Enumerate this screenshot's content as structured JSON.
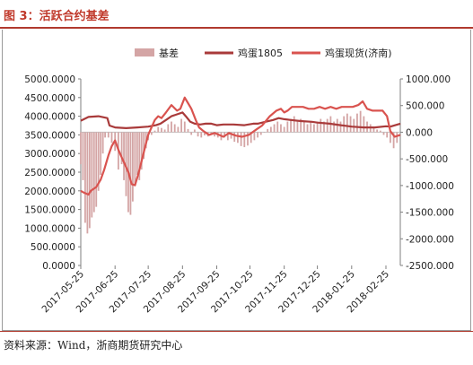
{
  "figure": {
    "title": "图 3：活跃合约基差",
    "source": "资料来源：Wind，浙商期货研究中心"
  },
  "colors": {
    "title": "#c0392b",
    "basis": "#d4a5a5",
    "futures": "#a93a3a",
    "spot": "#d9534f",
    "axis": "#7f7f7f"
  },
  "chart_data": {
    "type": "bar+line",
    "legend_position": "top",
    "grid": false,
    "x_ticks": [
      "2017-05-25",
      "2017-06-25",
      "2017-07-25",
      "2017-08-25",
      "2017-09-25",
      "2017-10-25",
      "2017-11-25",
      "2017-12-25",
      "2018-01-25",
      "2018-02-25"
    ],
    "x_start": "2017-05-25",
    "x_end": "2018-03-10",
    "left_axis": {
      "ylim": [
        0,
        5000
      ],
      "ticks": [
        "0.0000",
        "500.0000",
        "1000.0000",
        "1500.0000",
        "2000.0000",
        "2500.0000",
        "3000.0000",
        "3500.0000",
        "4000.0000",
        "4500.0000",
        "5000.0000"
      ]
    },
    "right_axis": {
      "ylim": [
        -2500,
        1000
      ],
      "ticks": [
        "-2500.000",
        "-2000.000",
        "-1500.000",
        "-1000.000",
        "-500.000",
        "0.000",
        "500.000",
        "1000.000"
      ]
    },
    "series": [
      {
        "name": "基差",
        "type": "bar",
        "axis": "right",
        "points": [
          [
            "2017-05-25",
            -600
          ],
          [
            "2017-05-27",
            -900
          ],
          [
            "2017-05-29",
            -1700
          ],
          [
            "2017-05-31",
            -1900
          ],
          [
            "2017-06-02",
            -1800
          ],
          [
            "2017-06-04",
            -1600
          ],
          [
            "2017-06-06",
            -1500
          ],
          [
            "2017-06-08",
            -1400
          ],
          [
            "2017-06-10",
            -1100
          ],
          [
            "2017-06-12",
            -800
          ],
          [
            "2017-06-14",
            -400
          ],
          [
            "2017-06-16",
            -100
          ],
          [
            "2017-06-19",
            -100
          ],
          [
            "2017-06-22",
            -200
          ],
          [
            "2017-06-25",
            -350
          ],
          [
            "2017-06-28",
            -700
          ],
          [
            "2017-07-01",
            -600
          ],
          [
            "2017-07-03",
            -900
          ],
          [
            "2017-07-05",
            -1200
          ],
          [
            "2017-07-07",
            -1500
          ],
          [
            "2017-07-09",
            -1550
          ],
          [
            "2017-07-11",
            -1300
          ],
          [
            "2017-07-13",
            -1000
          ],
          [
            "2017-07-15",
            -800
          ],
          [
            "2017-07-17",
            -900
          ],
          [
            "2017-07-19",
            -700
          ],
          [
            "2017-07-21",
            -500
          ],
          [
            "2017-07-23",
            -300
          ],
          [
            "2017-07-25",
            -150
          ],
          [
            "2017-07-28",
            -50
          ],
          [
            "2017-07-31",
            30
          ],
          [
            "2017-08-03",
            100
          ],
          [
            "2017-08-06",
            80
          ],
          [
            "2017-08-09",
            50
          ],
          [
            "2017-08-12",
            150
          ],
          [
            "2017-08-15",
            200
          ],
          [
            "2017-08-18",
            150
          ],
          [
            "2017-08-21",
            100
          ],
          [
            "2017-08-24",
            250
          ],
          [
            "2017-08-27",
            200
          ],
          [
            "2017-08-30",
            60
          ],
          [
            "2017-09-02",
            -50
          ],
          [
            "2017-09-05",
            50
          ],
          [
            "2017-09-08",
            -80
          ],
          [
            "2017-09-11",
            -100
          ],
          [
            "2017-09-14",
            -60
          ],
          [
            "2017-09-17",
            -80
          ],
          [
            "2017-09-20",
            -50
          ],
          [
            "2017-09-23",
            -80
          ],
          [
            "2017-09-26",
            -100
          ],
          [
            "2017-09-29",
            -150
          ],
          [
            "2017-10-02",
            -100
          ],
          [
            "2017-10-05",
            -150
          ],
          [
            "2017-10-08",
            -120
          ],
          [
            "2017-10-11",
            -180
          ],
          [
            "2017-10-14",
            -200
          ],
          [
            "2017-10-17",
            -260
          ],
          [
            "2017-10-20",
            -280
          ],
          [
            "2017-10-23",
            -250
          ],
          [
            "2017-10-26",
            -200
          ],
          [
            "2017-10-29",
            -150
          ],
          [
            "2017-11-01",
            -100
          ],
          [
            "2017-11-04",
            -50
          ],
          [
            "2017-11-07",
            0
          ],
          [
            "2017-11-10",
            60
          ],
          [
            "2017-11-13",
            100
          ],
          [
            "2017-11-16",
            150
          ],
          [
            "2017-11-19",
            200
          ],
          [
            "2017-11-22",
            150
          ],
          [
            "2017-11-25",
            100
          ],
          [
            "2017-11-28",
            200
          ],
          [
            "2017-12-01",
            250
          ],
          [
            "2017-12-04",
            300
          ],
          [
            "2017-12-07",
            200
          ],
          [
            "2017-12-10",
            250
          ],
          [
            "2017-12-13",
            200
          ],
          [
            "2017-12-16",
            150
          ],
          [
            "2017-12-19",
            200
          ],
          [
            "2017-12-22",
            150
          ],
          [
            "2017-12-25",
            200
          ],
          [
            "2017-12-28",
            250
          ],
          [
            "2017-12-31",
            200
          ],
          [
            "2018-01-03",
            250
          ],
          [
            "2018-01-06",
            300
          ],
          [
            "2018-01-09",
            200
          ],
          [
            "2018-01-12",
            250
          ],
          [
            "2018-01-15",
            200
          ],
          [
            "2018-01-18",
            300
          ],
          [
            "2018-01-21",
            350
          ],
          [
            "2018-01-24",
            300
          ],
          [
            "2018-01-27",
            250
          ],
          [
            "2018-01-30",
            350
          ],
          [
            "2018-02-02",
            400
          ],
          [
            "2018-02-05",
            300
          ],
          [
            "2018-02-08",
            200
          ],
          [
            "2018-02-11",
            150
          ],
          [
            "2018-02-14",
            100
          ],
          [
            "2018-02-17",
            50
          ],
          [
            "2018-02-20",
            30
          ],
          [
            "2018-02-23",
            -50
          ],
          [
            "2018-02-26",
            -100
          ],
          [
            "2018-03-01",
            -200
          ],
          [
            "2018-03-04",
            -300
          ],
          [
            "2018-03-07",
            -200
          ]
        ]
      },
      {
        "name": "鸡蛋1805",
        "type": "line",
        "axis": "left",
        "points": [
          [
            "2017-05-25",
            3880
          ],
          [
            "2017-06-01",
            3980
          ],
          [
            "2017-06-10",
            4000
          ],
          [
            "2017-06-18",
            3950
          ],
          [
            "2017-06-20",
            3750
          ],
          [
            "2017-06-25",
            3700
          ],
          [
            "2017-07-05",
            3680
          ],
          [
            "2017-07-15",
            3700
          ],
          [
            "2017-07-25",
            3720
          ],
          [
            "2017-08-01",
            3760
          ],
          [
            "2017-08-05",
            3800
          ],
          [
            "2017-08-10",
            3900
          ],
          [
            "2017-08-15",
            4000
          ],
          [
            "2017-08-20",
            4050
          ],
          [
            "2017-08-25",
            4100
          ],
          [
            "2017-08-28",
            4000
          ],
          [
            "2017-09-01",
            3850
          ],
          [
            "2017-09-05",
            3800
          ],
          [
            "2017-09-10",
            3780
          ],
          [
            "2017-09-15",
            3800
          ],
          [
            "2017-09-20",
            3800
          ],
          [
            "2017-09-25",
            3760
          ],
          [
            "2017-10-01",
            3780
          ],
          [
            "2017-10-10",
            3780
          ],
          [
            "2017-10-20",
            3760
          ],
          [
            "2017-10-28",
            3800
          ],
          [
            "2017-11-01",
            3800
          ],
          [
            "2017-11-08",
            3850
          ],
          [
            "2017-11-15",
            3900
          ],
          [
            "2017-11-20",
            3950
          ],
          [
            "2017-11-25",
            3920
          ],
          [
            "2017-12-01",
            3900
          ],
          [
            "2017-12-10",
            3870
          ],
          [
            "2017-12-20",
            3850
          ],
          [
            "2017-12-25",
            3830
          ],
          [
            "2018-01-05",
            3800
          ],
          [
            "2018-01-15",
            3760
          ],
          [
            "2018-01-25",
            3720
          ],
          [
            "2018-02-05",
            3700
          ],
          [
            "2018-02-15",
            3700
          ],
          [
            "2018-02-25",
            3730
          ],
          [
            "2018-03-01",
            3720
          ],
          [
            "2018-03-10",
            3800
          ]
        ]
      },
      {
        "name": "鸡蛋现货(济南)",
        "type": "line",
        "axis": "left",
        "points": [
          [
            "2017-05-25",
            2000
          ],
          [
            "2017-05-28",
            1950
          ],
          [
            "2017-06-01",
            1900
          ],
          [
            "2017-06-03",
            2000
          ],
          [
            "2017-06-08",
            2100
          ],
          [
            "2017-06-12",
            2300
          ],
          [
            "2017-06-15",
            2550
          ],
          [
            "2017-06-19",
            2950
          ],
          [
            "2017-06-22",
            3200
          ],
          [
            "2017-06-25",
            3350
          ],
          [
            "2017-06-28",
            3100
          ],
          [
            "2017-07-01",
            2900
          ],
          [
            "2017-07-04",
            2700
          ],
          [
            "2017-07-07",
            2500
          ],
          [
            "2017-07-10",
            2180
          ],
          [
            "2017-07-13",
            2150
          ],
          [
            "2017-07-16",
            2450
          ],
          [
            "2017-07-19",
            2800
          ],
          [
            "2017-07-22",
            3150
          ],
          [
            "2017-07-25",
            3500
          ],
          [
            "2017-07-28",
            3700
          ],
          [
            "2017-07-31",
            3900
          ],
          [
            "2017-08-03",
            4000
          ],
          [
            "2017-08-06",
            3950
          ],
          [
            "2017-08-10",
            4100
          ],
          [
            "2017-08-15",
            4300
          ],
          [
            "2017-08-20",
            4150
          ],
          [
            "2017-08-23",
            4200
          ],
          [
            "2017-08-27",
            4500
          ],
          [
            "2017-08-30",
            4350
          ],
          [
            "2017-09-02",
            4200
          ],
          [
            "2017-09-06",
            3900
          ],
          [
            "2017-09-09",
            3700
          ],
          [
            "2017-09-13",
            3600
          ],
          [
            "2017-09-18",
            3500
          ],
          [
            "2017-09-23",
            3550
          ],
          [
            "2017-09-27",
            3500
          ],
          [
            "2017-10-01",
            3450
          ],
          [
            "2017-10-06",
            3550
          ],
          [
            "2017-10-12",
            3480
          ],
          [
            "2017-10-18",
            3450
          ],
          [
            "2017-10-24",
            3500
          ],
          [
            "2017-10-31",
            3650
          ],
          [
            "2017-11-05",
            3750
          ],
          [
            "2017-11-12",
            4000
          ],
          [
            "2017-11-18",
            4150
          ],
          [
            "2017-11-22",
            4200
          ],
          [
            "2017-11-25",
            4100
          ],
          [
            "2017-11-28",
            4150
          ],
          [
            "2017-12-02",
            4250
          ],
          [
            "2017-12-07",
            4250
          ],
          [
            "2017-12-12",
            4250
          ],
          [
            "2017-12-17",
            4200
          ],
          [
            "2017-12-22",
            4200
          ],
          [
            "2017-12-27",
            4250
          ],
          [
            "2018-01-01",
            4200
          ],
          [
            "2018-01-06",
            4250
          ],
          [
            "2018-01-11",
            4200
          ],
          [
            "2018-01-16",
            4250
          ],
          [
            "2018-01-21",
            4250
          ],
          [
            "2018-01-26",
            4250
          ],
          [
            "2018-01-31",
            4300
          ],
          [
            "2018-02-04",
            4400
          ],
          [
            "2018-02-08",
            4200
          ],
          [
            "2018-02-13",
            4150
          ],
          [
            "2018-02-18",
            4150
          ],
          [
            "2018-02-22",
            4150
          ],
          [
            "2018-02-26",
            4000
          ],
          [
            "2018-03-01",
            3600
          ],
          [
            "2018-03-05",
            3450
          ],
          [
            "2018-03-10",
            3500
          ]
        ]
      }
    ]
  }
}
